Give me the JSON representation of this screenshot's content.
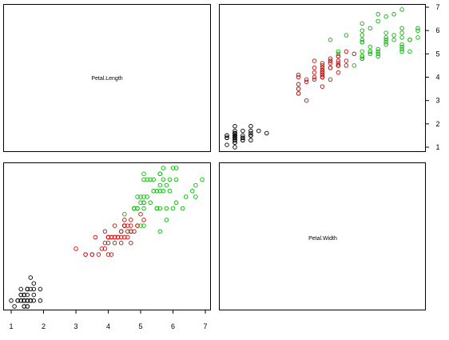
{
  "chart_data": {
    "type": "scatter",
    "layout": "pairs-matrix",
    "variables": [
      "Petal.Length",
      "Petal.Width"
    ],
    "petal_length_ticks": [
      "1",
      "2",
      "3",
      "4",
      "5",
      "6",
      "7"
    ],
    "petal_width_range": [
      0.1,
      2.5
    ],
    "petal_length_range": [
      1,
      7
    ],
    "colors": {
      "setosa": "#000000",
      "versicolor": "#dd0000",
      "virginica": "#00bb00"
    },
    "groups": [
      {
        "color_key": "setosa",
        "x": [
          0.2,
          0.2,
          0.2,
          0.2,
          0.2,
          0.4,
          0.3,
          0.2,
          0.2,
          0.1,
          0.2,
          0.2,
          0.1,
          0.1,
          0.2,
          0.4,
          0.4,
          0.3,
          0.3,
          0.3,
          0.2,
          0.4,
          0.2,
          0.5,
          0.2,
          0.2,
          0.4,
          0.2,
          0.2,
          0.2,
          0.2,
          0.4,
          0.1,
          0.2,
          0.2,
          0.2,
          0.2,
          0.1,
          0.2,
          0.2,
          0.3,
          0.3,
          0.2,
          0.6,
          0.4,
          0.3,
          0.2,
          0.2,
          0.2,
          0.2
        ],
        "y": [
          1.4,
          1.4,
          1.3,
          1.5,
          1.4,
          1.7,
          1.4,
          1.5,
          1.4,
          1.5,
          1.5,
          1.6,
          1.4,
          1.1,
          1.2,
          1.5,
          1.3,
          1.4,
          1.7,
          1.5,
          1.7,
          1.5,
          1.0,
          1.7,
          1.9,
          1.6,
          1.6,
          1.5,
          1.4,
          1.6,
          1.6,
          1.5,
          1.5,
          1.4,
          1.5,
          1.2,
          1.3,
          1.4,
          1.3,
          1.5,
          1.3,
          1.3,
          1.3,
          1.6,
          1.9,
          1.4,
          1.6,
          1.4,
          1.5,
          1.4
        ]
      },
      {
        "color_key": "versicolor",
        "x": [
          1.4,
          1.5,
          1.5,
          1.3,
          1.5,
          1.3,
          1.6,
          1.0,
          1.3,
          1.4,
          1.0,
          1.5,
          1.0,
          1.4,
          1.3,
          1.4,
          1.5,
          1.0,
          1.5,
          1.1,
          1.8,
          1.3,
          1.5,
          1.2,
          1.3,
          1.4,
          1.4,
          1.7,
          1.5,
          1.0,
          1.1,
          1.0,
          1.2,
          1.6,
          1.5,
          1.6,
          1.5,
          1.3,
          1.3,
          1.3,
          1.2,
          1.4,
          1.2,
          1.0,
          1.3,
          1.2,
          1.3,
          1.3,
          1.1,
          1.3
        ],
        "y": [
          4.7,
          4.5,
          4.9,
          4.0,
          4.6,
          4.5,
          4.7,
          3.3,
          4.6,
          3.9,
          3.5,
          4.2,
          4.0,
          4.7,
          3.6,
          4.4,
          4.5,
          4.1,
          4.5,
          3.9,
          4.8,
          4.0,
          4.9,
          4.7,
          4.3,
          4.4,
          4.8,
          5.0,
          4.5,
          3.5,
          3.8,
          3.7,
          3.9,
          5.1,
          4.5,
          4.5,
          4.7,
          4.4,
          4.1,
          4.0,
          4.4,
          4.6,
          4.0,
          3.3,
          4.2,
          4.2,
          4.2,
          4.3,
          3.0,
          4.1
        ]
      },
      {
        "color_key": "virginica",
        "x": [
          2.5,
          1.9,
          2.1,
          1.8,
          2.2,
          2.1,
          1.7,
          1.8,
          1.8,
          2.5,
          2.0,
          1.9,
          2.1,
          2.0,
          2.4,
          2.3,
          1.8,
          2.2,
          2.3,
          1.5,
          2.3,
          2.0,
          2.0,
          1.8,
          2.1,
          1.8,
          1.8,
          1.8,
          2.1,
          1.6,
          1.9,
          2.0,
          2.2,
          1.5,
          1.4,
          2.3,
          2.4,
          1.8,
          1.8,
          2.1,
          2.4,
          2.3,
          1.9,
          2.3,
          2.5,
          2.3,
          1.9,
          2.0,
          2.3,
          1.8
        ],
        "y": [
          6.0,
          5.1,
          5.9,
          5.6,
          5.8,
          6.6,
          4.5,
          6.3,
          5.8,
          6.1,
          5.1,
          5.3,
          5.5,
          5.0,
          5.1,
          5.3,
          5.5,
          6.7,
          6.9,
          5.0,
          5.7,
          4.9,
          6.7,
          4.9,
          5.7,
          6.0,
          4.8,
          4.9,
          5.6,
          5.8,
          6.1,
          6.4,
          5.6,
          5.1,
          5.6,
          6.1,
          5.6,
          5.5,
          4.8,
          5.4,
          5.6,
          5.1,
          5.1,
          5.9,
          5.7,
          5.2,
          5.0,
          5.2,
          5.4,
          5.1
        ]
      }
    ]
  }
}
